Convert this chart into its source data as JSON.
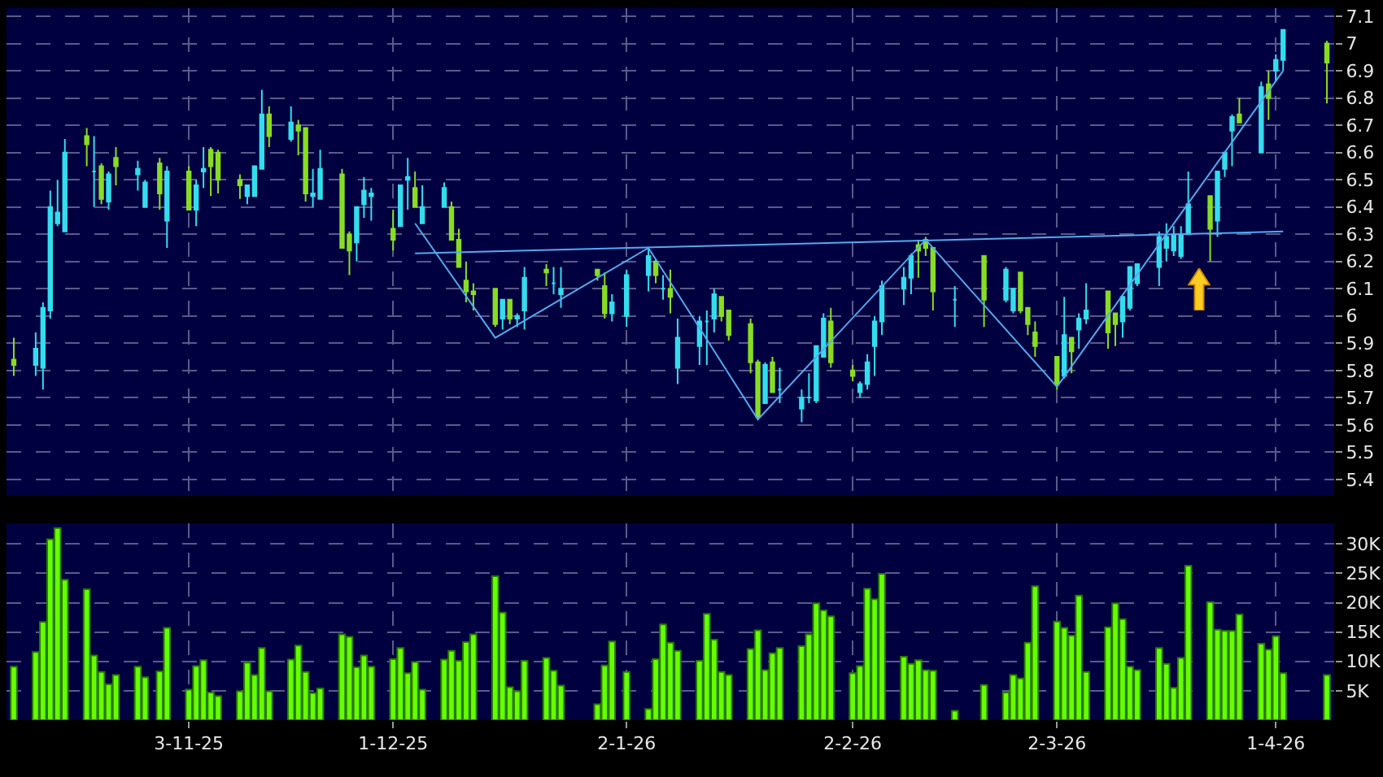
{
  "chart_data": [
    {
      "type": "candlestick",
      "tick_labels": "y",
      "grid": true,
      "x": [
        "2025-10-10",
        "2025-10-13",
        "2025-10-14",
        "2025-10-15",
        "2025-10-16",
        "2025-10-17",
        "2025-10-20",
        "2025-10-21",
        "2025-10-22",
        "2025-10-23",
        "2025-10-24",
        "2025-10-27",
        "2025-10-28",
        "2025-10-30",
        "2025-10-31",
        "2025-11-03",
        "2025-11-04",
        "2025-11-05",
        "2025-11-06",
        "2025-11-07",
        "2025-11-10",
        "2025-11-11",
        "2025-11-12",
        "2025-11-13",
        "2025-11-14",
        "2025-11-17",
        "2025-11-18",
        "2025-11-19",
        "2025-11-20",
        "2025-11-21",
        "2025-11-24",
        "2025-11-25",
        "2025-11-26",
        "2025-11-27",
        "2025-11-28",
        "2025-12-01",
        "2025-12-02",
        "2025-12-03",
        "2025-12-04",
        "2025-12-05",
        "2025-12-08",
        "2025-12-09",
        "2025-12-10",
        "2025-12-11",
        "2025-12-12",
        "2025-12-15",
        "2025-12-16",
        "2025-12-17",
        "2025-12-18",
        "2025-12-19",
        "2025-12-22",
        "2025-12-23",
        "2025-12-24",
        "2025-12-29",
        "2025-12-30",
        "2025-12-31",
        "2026-01-02",
        "2026-01-05",
        "2026-01-06",
        "2026-01-07",
        "2026-01-08",
        "2026-01-09",
        "2026-01-12",
        "2026-01-13",
        "2026-01-14",
        "2026-01-15",
        "2026-01-16",
        "2026-01-19",
        "2026-01-20",
        "2026-01-21",
        "2026-01-22",
        "2026-01-23",
        "2026-01-26",
        "2026-01-27",
        "2026-01-28",
        "2026-01-29",
        "2026-01-30",
        "2026-02-02",
        "2026-02-03",
        "2026-02-04",
        "2026-02-05",
        "2026-02-06",
        "2026-02-09",
        "2026-02-10",
        "2026-02-11",
        "2026-02-12",
        "2026-02-13",
        "2026-02-16",
        "2026-02-20",
        "2026-02-23",
        "2026-02-24",
        "2026-02-25",
        "2026-02-26",
        "2026-02-27",
        "2026-03-02",
        "2026-03-03",
        "2026-03-04",
        "2026-03-05",
        "2026-03-06",
        "2026-03-09",
        "2026-03-10",
        "2026-03-11",
        "2026-03-12",
        "2026-03-13",
        "2026-03-16",
        "2026-03-17",
        "2026-03-18",
        "2026-03-19",
        "2026-03-20",
        "2026-03-23",
        "2026-03-24",
        "2026-03-25",
        "2026-03-26",
        "2026-03-27",
        "2026-03-30",
        "2026-03-31",
        "2026-04-01",
        "2026-04-02",
        "2026-04-08"
      ],
      "ohlc": [
        [
          5.84,
          5.92,
          5.78,
          5.82
        ],
        [
          5.82,
          5.94,
          5.78,
          5.88
        ],
        [
          5.81,
          6.05,
          5.73,
          6.03
        ],
        [
          6.02,
          6.46,
          5.99,
          6.4
        ],
        [
          6.34,
          6.5,
          6.33,
          6.38
        ],
        [
          6.31,
          6.65,
          6.31,
          6.6
        ],
        [
          6.66,
          6.69,
          6.55,
          6.63
        ],
        [
          6.53,
          6.66,
          6.4,
          6.53
        ],
        [
          6.55,
          6.56,
          6.41,
          6.43
        ],
        [
          6.42,
          6.53,
          6.39,
          6.52
        ],
        [
          6.58,
          6.62,
          6.48,
          6.55
        ],
        [
          6.52,
          6.57,
          6.46,
          6.54
        ],
        [
          6.4,
          6.5,
          6.4,
          6.49
        ],
        [
          6.56,
          6.58,
          6.39,
          6.45
        ],
        [
          6.35,
          6.55,
          6.25,
          6.53
        ],
        [
          6.53,
          6.55,
          6.39,
          6.39
        ],
        [
          6.39,
          6.5,
          6.33,
          6.48
        ],
        [
          6.53,
          6.62,
          6.47,
          6.54
        ],
        [
          6.61,
          6.62,
          6.44,
          6.55
        ],
        [
          6.6,
          6.61,
          6.45,
          6.5
        ],
        [
          6.5,
          6.52,
          6.43,
          6.48
        ],
        [
          6.44,
          6.48,
          6.41,
          6.48
        ],
        [
          6.44,
          6.55,
          6.44,
          6.55
        ],
        [
          6.54,
          6.83,
          6.54,
          6.74
        ],
        [
          6.74,
          6.77,
          6.62,
          6.66
        ],
        [
          6.65,
          6.77,
          6.64,
          6.71
        ],
        [
          6.7,
          6.72,
          6.59,
          6.68
        ],
        [
          6.69,
          6.69,
          6.42,
          6.45
        ],
        [
          6.44,
          6.54,
          6.4,
          6.45
        ],
        [
          6.43,
          6.61,
          6.43,
          6.54
        ],
        [
          6.52,
          6.54,
          6.25,
          6.25
        ],
        [
          6.3,
          6.31,
          6.15,
          6.24
        ],
        [
          6.27,
          6.4,
          6.2,
          6.4
        ],
        [
          6.41,
          6.51,
          6.36,
          6.46
        ],
        [
          6.44,
          6.47,
          6.35,
          6.45
        ],
        [
          6.32,
          6.39,
          6.24,
          6.28
        ],
        [
          6.33,
          6.48,
          6.33,
          6.48
        ],
        [
          6.5,
          6.58,
          6.39,
          6.51
        ],
        [
          6.47,
          6.53,
          6.4,
          6.4
        ],
        [
          6.34,
          6.48,
          6.34,
          6.4
        ],
        [
          6.4,
          6.49,
          6.4,
          6.47
        ],
        [
          6.4,
          6.42,
          6.28,
          6.28
        ],
        [
          6.28,
          6.32,
          6.18,
          6.18
        ],
        [
          6.13,
          6.2,
          6.05,
          6.09
        ],
        [
          6.09,
          6.12,
          6.02,
          6.08
        ],
        [
          6.1,
          6.1,
          5.96,
          5.97
        ],
        [
          5.99,
          6.06,
          5.95,
          6.06
        ],
        [
          6.06,
          6.06,
          5.97,
          5.99
        ],
        [
          5.99,
          6.01,
          5.96,
          6.0
        ],
        [
          6.02,
          6.18,
          5.95,
          6.14
        ],
        [
          6.17,
          6.19,
          6.11,
          6.16
        ],
        [
          6.12,
          6.18,
          6.08,
          6.12
        ],
        [
          6.08,
          6.18,
          6.03,
          6.1
        ],
        [
          6.17,
          6.17,
          6.13,
          6.15
        ],
        [
          6.11,
          6.16,
          5.99,
          6.01
        ],
        [
          6.01,
          6.08,
          5.98,
          6.05
        ],
        [
          6.0,
          6.17,
          5.96,
          6.15
        ],
        [
          6.15,
          6.25,
          6.09,
          6.22
        ],
        [
          6.2,
          6.21,
          6.12,
          6.15
        ],
        [
          6.1,
          6.15,
          6.06,
          6.1
        ],
        [
          6.1,
          6.17,
          6.01,
          6.07
        ],
        [
          5.81,
          5.99,
          5.75,
          5.92
        ],
        [
          5.89,
          6.0,
          5.82,
          5.98
        ],
        [
          5.98,
          6.02,
          5.82,
          5.98
        ],
        [
          5.99,
          6.1,
          5.94,
          6.08
        ],
        [
          6.07,
          6.07,
          5.98,
          6.0
        ],
        [
          6.02,
          6.02,
          5.91,
          5.93
        ],
        [
          5.97,
          5.99,
          5.79,
          5.83
        ],
        [
          5.83,
          5.84,
          5.62,
          5.63
        ],
        [
          5.68,
          5.83,
          5.68,
          5.82
        ],
        [
          5.83,
          5.85,
          5.72,
          5.72
        ],
        [
          5.73,
          5.81,
          5.68,
          5.73
        ],
        [
          5.66,
          5.73,
          5.61,
          5.7
        ],
        [
          5.7,
          5.79,
          5.68,
          5.7
        ],
        [
          5.69,
          5.89,
          5.68,
          5.89
        ],
        [
          5.85,
          6.01,
          5.85,
          5.99
        ],
        [
          5.98,
          6.03,
          5.81,
          5.83
        ],
        [
          5.8,
          5.82,
          5.76,
          5.78
        ],
        [
          5.72,
          5.76,
          5.7,
          5.75
        ],
        [
          5.75,
          5.86,
          5.73,
          5.83
        ],
        [
          5.89,
          6.0,
          5.78,
          5.98
        ],
        [
          5.98,
          6.13,
          5.93,
          6.11
        ],
        [
          6.1,
          6.18,
          6.04,
          6.14
        ],
        [
          6.14,
          6.23,
          6.08,
          6.22
        ],
        [
          6.26,
          6.28,
          6.14,
          6.24
        ],
        [
          6.28,
          6.29,
          6.22,
          6.25
        ],
        [
          6.25,
          6.25,
          6.02,
          6.09
        ],
        [
          6.06,
          6.11,
          5.96,
          6.06
        ],
        [
          6.22,
          6.22,
          5.96,
          6.06
        ],
        [
          6.06,
          6.18,
          6.05,
          6.17
        ],
        [
          6.02,
          6.1,
          6.01,
          6.1
        ],
        [
          6.16,
          6.16,
          6.01,
          6.02
        ],
        [
          6.03,
          6.03,
          5.93,
          5.97
        ],
        [
          5.94,
          5.98,
          5.85,
          5.89
        ],
        [
          5.85,
          5.85,
          5.73,
          5.75
        ],
        [
          5.78,
          6.07,
          5.77,
          5.93
        ],
        [
          5.92,
          5.92,
          5.79,
          5.87
        ],
        [
          5.95,
          6.01,
          5.88,
          5.99
        ],
        [
          5.99,
          6.12,
          5.97,
          6.02
        ],
        [
          6.09,
          6.09,
          5.88,
          5.94
        ],
        [
          6.01,
          6.01,
          5.89,
          5.97
        ],
        [
          5.98,
          6.08,
          5.92,
          6.07
        ],
        [
          6.03,
          6.18,
          6.02,
          6.18
        ],
        [
          6.12,
          6.19,
          6.11,
          6.19
        ],
        [
          6.18,
          6.31,
          6.11,
          6.29
        ],
        [
          6.25,
          6.34,
          6.2,
          6.29
        ],
        [
          6.24,
          6.33,
          6.22,
          6.3
        ],
        [
          6.22,
          6.33,
          6.21,
          6.3
        ],
        [
          6.3,
          6.53,
          6.3,
          6.41
        ],
        [
          6.44,
          6.44,
          6.2,
          6.32
        ],
        [
          6.35,
          6.53,
          6.29,
          6.53
        ],
        [
          6.54,
          6.6,
          6.51,
          6.6
        ],
        [
          6.68,
          6.74,
          6.55,
          6.73
        ],
        [
          6.74,
          6.8,
          6.71,
          6.71
        ],
        [
          6.6,
          6.86,
          6.6,
          6.84
        ],
        [
          6.85,
          6.9,
          6.72,
          6.8
        ],
        [
          6.9,
          6.96,
          6.86,
          6.94
        ],
        [
          6.94,
          7.05,
          6.9,
          7.05
        ],
        [
          7.0,
          7.01,
          6.78,
          6.93
        ]
      ],
      "colors": [
        "#88dd22",
        "#33ddee",
        "#33ddee",
        "#33ddee",
        "#33ddee",
        "#33ddee",
        "#88dd22",
        "#33ddee",
        "#88dd22",
        "#33ddee",
        "#88dd22",
        "#33ddee",
        "#33ddee",
        "#88dd22",
        "#33ddee",
        "#88dd22",
        "#33ddee",
        "#33ddee",
        "#88dd22",
        "#88dd22",
        "#88dd22",
        "#33ddee",
        "#33ddee",
        "#33ddee",
        "#88dd22",
        "#33ddee",
        "#88dd22",
        "#88dd22",
        "#33ddee",
        "#33ddee",
        "#88dd22",
        "#88dd22",
        "#33ddee",
        "#33ddee",
        "#33ddee",
        "#88dd22",
        "#33ddee",
        "#33ddee",
        "#88dd22",
        "#33ddee",
        "#33ddee",
        "#88dd22",
        "#88dd22",
        "#88dd22",
        "#88dd22",
        "#88dd22",
        "#33ddee",
        "#88dd22",
        "#33ddee",
        "#33ddee",
        "#88dd22",
        "#33ddee",
        "#33ddee",
        "#88dd22",
        "#88dd22",
        "#33ddee",
        "#33ddee",
        "#33ddee",
        "#88dd22",
        "#33ddee",
        "#88dd22",
        "#33ddee",
        "#33ddee",
        "#33ddee",
        "#33ddee",
        "#88dd22",
        "#88dd22",
        "#88dd22",
        "#88dd22",
        "#33ddee",
        "#88dd22",
        "#33ddee",
        "#33ddee",
        "#33ddee",
        "#33ddee",
        "#33ddee",
        "#88dd22",
        "#88dd22",
        "#33ddee",
        "#33ddee",
        "#33ddee",
        "#33ddee",
        "#33ddee",
        "#33ddee",
        "#88dd22",
        "#88dd22",
        "#88dd22",
        "#33ddee",
        "#88dd22",
        "#33ddee",
        "#33ddee",
        "#88dd22",
        "#88dd22",
        "#88dd22",
        "#88dd22",
        "#33ddee",
        "#88dd22",
        "#33ddee",
        "#33ddee",
        "#88dd22",
        "#88dd22",
        "#33ddee",
        "#33ddee",
        "#33ddee",
        "#33ddee",
        "#33ddee",
        "#33ddee",
        "#33ddee",
        "#33ddee",
        "#88dd22",
        "#33ddee",
        "#33ddee",
        "#33ddee",
        "#88dd22",
        "#33ddee",
        "#88dd22",
        "#33ddee",
        "#33ddee",
        "#88dd22"
      ],
      "series": [
        {
          "type": "line",
          "color": "#55aaee",
          "x": [
            "2025-12-04",
            "2025-12-15",
            "2026-01-05",
            "2026-01-20",
            "2026-02-12",
            "2026-03-02",
            "2026-04-02"
          ],
          "values": [
            6.34,
            5.92,
            6.25,
            5.62,
            6.28,
            5.74,
            6.9
          ]
        },
        {
          "type": "line",
          "color": "#55aaee",
          "x": [
            "2025-12-04",
            "2026-04-02"
          ],
          "values": [
            6.23,
            6.31
          ]
        }
      ],
      "ylim": [
        5.34,
        7.13
      ],
      "yticks": [
        5.4,
        5.5,
        5.6,
        5.7,
        5.8,
        5.9,
        6,
        6.1,
        6.2,
        6.3,
        6.4,
        6.5,
        6.6,
        6.7,
        6.8,
        6.9,
        7,
        7.1
      ],
      "xlim": [
        "2025-10-09",
        "2026-04-09"
      ],
      "xticks": [
        {
          "value": "2025-11-03",
          "label": null
        },
        {
          "value": "2025-12-01",
          "label": null
        },
        {
          "value": "2026-01-02",
          "label": null
        },
        {
          "value": "2026-02-02",
          "label": null
        },
        {
          "value": "2026-03-02",
          "label": null
        },
        {
          "value": "2026-04-01",
          "label": null
        }
      ]
    },
    {
      "type": "bar",
      "grid": true,
      "color": "#66ff00",
      "x": [
        "2025-10-10",
        "2025-10-13",
        "2025-10-14",
        "2025-10-15",
        "2025-10-16",
        "2025-10-17",
        "2025-10-20",
        "2025-10-21",
        "2025-10-22",
        "2025-10-23",
        "2025-10-24",
        "2025-10-27",
        "2025-10-28",
        "2025-10-30",
        "2025-10-31",
        "2025-11-03",
        "2025-11-04",
        "2025-11-05",
        "2025-11-06",
        "2025-11-07",
        "2025-11-10",
        "2025-11-11",
        "2025-11-12",
        "2025-11-13",
        "2025-11-14",
        "2025-11-17",
        "2025-11-18",
        "2025-11-19",
        "2025-11-20",
        "2025-11-21",
        "2025-11-24",
        "2025-11-25",
        "2025-11-26",
        "2025-11-27",
        "2025-11-28",
        "2025-12-01",
        "2025-12-02",
        "2025-12-03",
        "2025-12-04",
        "2025-12-05",
        "2025-12-08",
        "2025-12-09",
        "2025-12-10",
        "2025-12-11",
        "2025-12-12",
        "2025-12-15",
        "2025-12-16",
        "2025-12-17",
        "2025-12-18",
        "2025-12-19",
        "2025-12-22",
        "2025-12-23",
        "2025-12-24",
        "2025-12-29",
        "2025-12-30",
        "2025-12-31",
        "2026-01-02",
        "2026-01-05",
        "2026-01-06",
        "2026-01-07",
        "2026-01-08",
        "2026-01-09",
        "2026-01-12",
        "2026-01-13",
        "2026-01-14",
        "2026-01-15",
        "2026-01-16",
        "2026-01-19",
        "2026-01-20",
        "2026-01-21",
        "2026-01-22",
        "2026-01-23",
        "2026-01-26",
        "2026-01-27",
        "2026-01-28",
        "2026-01-29",
        "2026-01-30",
        "2026-02-02",
        "2026-02-03",
        "2026-02-04",
        "2026-02-05",
        "2026-02-06",
        "2026-02-09",
        "2026-02-10",
        "2026-02-11",
        "2026-02-12",
        "2026-02-13",
        "2026-02-16",
        "2026-02-20",
        "2026-02-23",
        "2026-02-24",
        "2026-02-25",
        "2026-02-26",
        "2026-02-27",
        "2026-03-02",
        "2026-03-03",
        "2026-03-04",
        "2026-03-05",
        "2026-03-06",
        "2026-03-09",
        "2026-03-10",
        "2026-03-11",
        "2026-03-12",
        "2026-03-13",
        "2026-03-16",
        "2026-03-17",
        "2026-03-18",
        "2026-03-19",
        "2026-03-20",
        "2026-03-23",
        "2026-03-24",
        "2026-03-25",
        "2026-03-26",
        "2026-03-27",
        "2026-03-30",
        "2026-03-31",
        "2026-04-01",
        "2026-04-02",
        "2026-04-08"
      ],
      "values": [
        9100,
        11600,
        16700,
        30800,
        32700,
        23900,
        22300,
        11000,
        8200,
        6100,
        7700,
        9100,
        7300,
        8300,
        15700,
        5200,
        9200,
        10200,
        4700,
        4100,
        4900,
        9800,
        7700,
        12300,
        4900,
        10300,
        12700,
        8200,
        4600,
        5400,
        14600,
        14200,
        9000,
        11000,
        9100,
        10400,
        12300,
        8000,
        9900,
        5200,
        10300,
        11800,
        10100,
        13300,
        14600,
        24500,
        18300,
        5600,
        4900,
        10100,
        10600,
        8400,
        5900,
        2700,
        9300,
        13400,
        8200,
        1900,
        10400,
        16300,
        13200,
        11800,
        10100,
        18100,
        13700,
        8200,
        7700,
        12100,
        15300,
        8500,
        11400,
        12300,
        12600,
        14600,
        19900,
        18700,
        17700,
        8000,
        9200,
        22400,
        20600,
        24900,
        10800,
        9600,
        10200,
        8500,
        8400,
        1600,
        6000,
        4700,
        7700,
        7100,
        13200,
        22800,
        16800,
        15700,
        14400,
        21200,
        8200,
        15800,
        19900,
        17200,
        9100,
        8500,
        12300,
        9600,
        5500,
        10600,
        26300,
        20100,
        15400,
        15200,
        15200,
        18000,
        13000,
        12000,
        14300,
        8000,
        7700
      ],
      "xlim": [
        "2025-10-09",
        "2026-04-09"
      ],
      "ylim": [
        0,
        33500
      ],
      "yticks": [
        {
          "value": 5000,
          "label": "5K"
        },
        {
          "value": 10000,
          "label": "10K"
        },
        {
          "value": 15000,
          "label": "15K"
        },
        {
          "value": 20000,
          "label": "20K"
        },
        {
          "value": 25000,
          "label": "25K"
        },
        {
          "value": 30000,
          "label": "30K"
        }
      ],
      "xticks": [
        {
          "value": "2025-11-03",
          "label": "3-11-25"
        },
        {
          "value": "2025-12-01",
          "label": "1-12-25"
        },
        {
          "value": "2026-01-02",
          "label": "2-1-26"
        },
        {
          "value": "2026-02-02",
          "label": "2-2-26"
        },
        {
          "value": "2026-03-02",
          "label": "2-3-26"
        },
        {
          "value": "2026-04-01",
          "label": "1-4-26"
        }
      ]
    }
  ]
}
